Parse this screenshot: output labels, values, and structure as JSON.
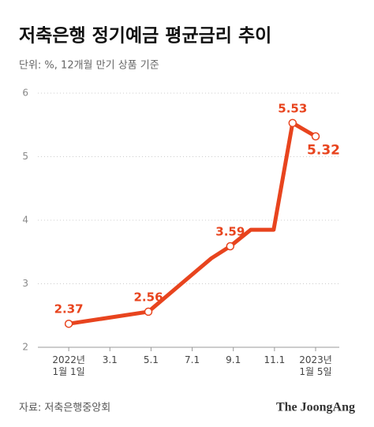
{
  "chart_data": {
    "type": "line",
    "title": "저축은행 정기예금 평균금리 추이",
    "subtitle": "단위: %, 12개월 만기 상품 기준",
    "source": "자료: 저축은행중앙회",
    "brand": "The JoongAng",
    "x": [
      0,
      3.87,
      6.93,
      7.85,
      8.85,
      9.96,
      10.88,
      12
    ],
    "series": [
      {
        "name": "정기예금 평균금리",
        "color": "#e8441e",
        "values": [
          2.37,
          2.56,
          3.4,
          3.59,
          3.85,
          3.85,
          5.53,
          5.32
        ],
        "value_labels": [
          "2.37",
          "2.56",
          null,
          "3.59",
          null,
          null,
          "5.53",
          "5.32"
        ]
      }
    ],
    "xlim": [
      -1.5,
      13.15
    ],
    "xticks": [
      {
        "value": 0,
        "label": "2022년\n1월 1일"
      },
      {
        "value": 2,
        "label": "3.1"
      },
      {
        "value": 4,
        "label": "5.1"
      },
      {
        "value": 6,
        "label": "7.1"
      },
      {
        "value": 8,
        "label": "9.1"
      },
      {
        "value": 10,
        "label": "11.1"
      },
      {
        "value": 12,
        "label": "2023년\n1월 5일"
      }
    ],
    "ylim": [
      2,
      6
    ],
    "yticks": [
      2,
      3,
      4,
      5,
      6
    ],
    "grid": true
  }
}
